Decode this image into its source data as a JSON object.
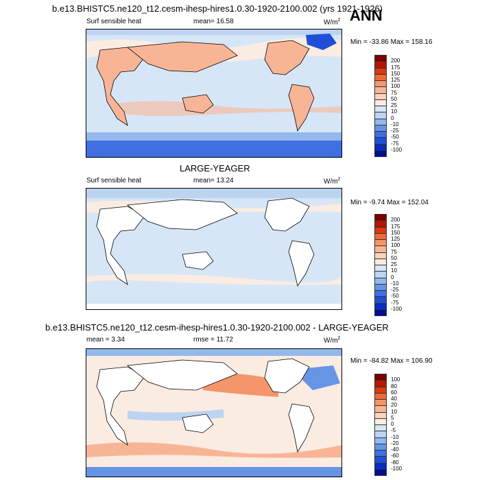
{
  "header": {
    "run_title": "b.e13.BHISTC5.ne120_t12.cesm-ihesp-hires1.0.30-1920-2100.002 (yrs 1921-1926)",
    "season": "ANN"
  },
  "panels": [
    {
      "heading": "",
      "variable": "Surf sensible heat",
      "mean_text": "mean=  16.58",
      "units": "W/m",
      "units_sup": "2",
      "minmax": "Min = -33.86 Max = 158.16",
      "levels": [
        "200",
        "175",
        "150",
        "125",
        "100",
        "75",
        "50",
        "25",
        "10",
        "0",
        "-10",
        "-25",
        "-50",
        "-75",
        "-100"
      ],
      "colors": [
        "#7a0000",
        "#b31700",
        "#d93a10",
        "#ef6a3a",
        "#f5956a",
        "#f8b596",
        "#fbd2bd",
        "#fbece2",
        "#d6e6f7",
        "#bcd3f1",
        "#93b8ec",
        "#6795e6",
        "#3f6fe0",
        "#1f4fd6",
        "#0a2cbf",
        "#000f8f"
      ]
    },
    {
      "heading": "LARGE-YEAGER",
      "variable": "Surf sensible heat",
      "mean_text": "mean=  13.24",
      "units": "W/m",
      "units_sup": "2",
      "minmax": "Min =  -9.74 Max = 152.04",
      "levels": [
        "200",
        "175",
        "150",
        "125",
        "100",
        "75",
        "50",
        "25",
        "10",
        "0",
        "-10",
        "-25",
        "-50",
        "-75",
        "-100"
      ],
      "colors": [
        "#7a0000",
        "#b31700",
        "#d93a10",
        "#ef6a3a",
        "#f5956a",
        "#f8b596",
        "#fbd2bd",
        "#fbece2",
        "#d6e6f7",
        "#bcd3f1",
        "#93b8ec",
        "#6795e6",
        "#3f6fe0",
        "#1f4fd6",
        "#0a2cbf",
        "#000f8f"
      ]
    },
    {
      "heading": "b.e13.BHISTC5.ne120_t12.cesm-ihesp-hires1.0.30-1920-2100.002 - LARGE-YEAGER",
      "variable": "",
      "mean_text": "mean =   3.34",
      "rmse_text": "rmse =  11.72",
      "units": "W/m",
      "units_sup": "2",
      "minmax": "Min = -84.82 Max = 106.90",
      "levels": [
        "100",
        "80",
        "60",
        "40",
        "20",
        "10",
        "5",
        "0",
        "-5",
        "-10",
        "-20",
        "-40",
        "-60",
        "-80",
        "-100"
      ],
      "colors": [
        "#7a0000",
        "#b31700",
        "#d93a10",
        "#ef6a3a",
        "#f5956a",
        "#f8b596",
        "#fbd2bd",
        "#fbece2",
        "#d6e6f7",
        "#bcd3f1",
        "#93b8ec",
        "#6795e6",
        "#3f6fe0",
        "#1f4fd6",
        "#0a2cbf",
        "#000f8f"
      ]
    }
  ],
  "chart_data": [
    {
      "type": "heatmap",
      "title": "Surf sensible heat",
      "mean": 16.58,
      "units": "W/m2",
      "min": -33.86,
      "max": 158.16,
      "contour_levels": [
        -100,
        -75,
        -50,
        -25,
        -10,
        0,
        10,
        25,
        50,
        75,
        100,
        125,
        150,
        175,
        200
      ]
    },
    {
      "type": "heatmap",
      "title": "Surf sensible heat",
      "mean": 13.24,
      "units": "W/m2",
      "min": -9.74,
      "max": 152.04,
      "contour_levels": [
        -100,
        -75,
        -50,
        -25,
        -10,
        0,
        10,
        25,
        50,
        75,
        100,
        125,
        150,
        175,
        200
      ]
    },
    {
      "type": "heatmap",
      "title": "b.e13.BHISTC5.ne120_t12.cesm-ihesp-hires1.0.30-1920-2100.002 - LARGE-YEAGER",
      "mean": 3.34,
      "rmse": 11.72,
      "units": "W/m2",
      "min": -84.82,
      "max": 106.9,
      "contour_levels": [
        -100,
        -80,
        -60,
        -40,
        -20,
        -10,
        -5,
        0,
        5,
        10,
        20,
        40,
        60,
        80,
        100
      ]
    }
  ]
}
